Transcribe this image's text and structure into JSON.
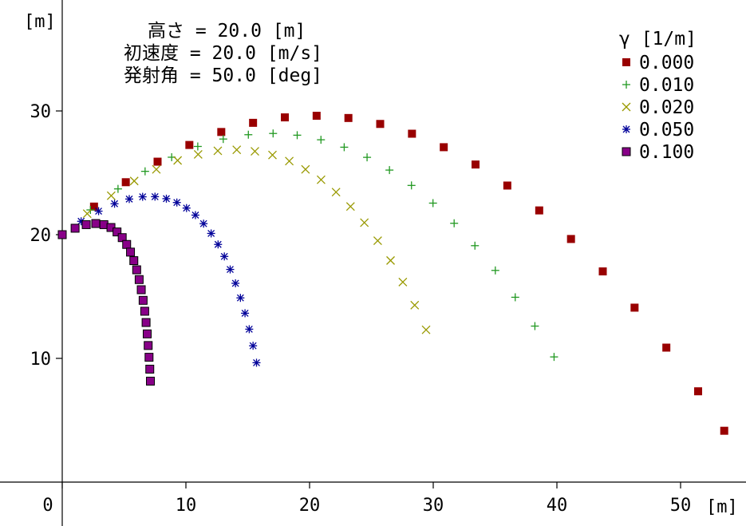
{
  "chart_data": {
    "type": "scatter",
    "annotations": [
      "高さ = 20.0 [m]",
      "初速度 = 20.0 [m/s]",
      "発射角 = 50.0 [deg]"
    ],
    "xlabel": "[m]",
    "ylabel": "[m]",
    "xlim": [
      0,
      55
    ],
    "ylim": [
      0,
      39
    ],
    "xticks": [
      "0",
      "10",
      "20",
      "30",
      "40",
      "50"
    ],
    "yticks": [
      "10",
      "20",
      "30"
    ],
    "grid": false,
    "legend_title": "γ [1/m]",
    "legend_position": "top-right",
    "series": [
      {
        "name": "0.000",
        "color": "#990000",
        "marker": "square",
        "x": [
          0,
          2.57,
          5.14,
          7.71,
          10.28,
          12.86,
          15.43,
          18.0,
          20.57,
          23.14,
          25.71,
          28.28,
          30.85,
          33.42,
          35.99,
          38.57,
          41.14,
          43.71,
          46.28,
          48.85,
          51.42,
          53.53
        ],
        "y": [
          20.0,
          22.27,
          24.24,
          25.9,
          27.25,
          28.3,
          29.04,
          29.48,
          29.61,
          29.43,
          28.95,
          28.16,
          27.07,
          25.67,
          23.97,
          21.96,
          19.65,
          17.03,
          14.1,
          10.87,
          7.34,
          4.15
        ]
      },
      {
        "name": "0.010",
        "color": "#229922",
        "marker": "plus",
        "x": [
          0,
          2.28,
          4.51,
          6.7,
          8.85,
          10.96,
          13.02,
          15.05,
          17.05,
          19.0,
          20.92,
          22.8,
          24.65,
          26.46,
          28.24,
          29.98,
          31.69,
          33.37,
          35.02,
          36.63,
          38.22,
          39.77
        ],
        "y": [
          20.0,
          22.0,
          23.7,
          25.12,
          26.26,
          27.13,
          27.73,
          28.08,
          28.18,
          28.04,
          27.67,
          27.07,
          26.25,
          25.22,
          23.98,
          22.55,
          20.92,
          19.11,
          17.11,
          14.94,
          12.61,
          10.12
        ]
      },
      {
        "name": "0.020",
        "color": "#999900",
        "marker": "x",
        "x": [
          0,
          2.02,
          3.96,
          5.82,
          7.61,
          9.33,
          10.99,
          12.58,
          14.11,
          15.58,
          17.0,
          18.36,
          19.67,
          20.93,
          22.14,
          23.31,
          24.43,
          25.51,
          26.55,
          27.54,
          28.5,
          29.42
        ],
        "y": [
          20.0,
          21.7,
          23.15,
          24.34,
          25.28,
          26.0,
          26.49,
          26.78,
          26.86,
          26.74,
          26.44,
          25.95,
          25.28,
          24.44,
          23.44,
          22.28,
          20.97,
          19.51,
          17.91,
          16.17,
          14.3,
          12.31
        ]
      },
      {
        "name": "0.050",
        "color": "#000099",
        "marker": "star",
        "x": [
          0,
          1.53,
          2.94,
          4.23,
          5.42,
          6.5,
          7.5,
          8.42,
          9.27,
          10.05,
          10.77,
          11.43,
          12.04,
          12.6,
          13.11,
          13.58,
          14.01,
          14.41,
          14.78,
          15.12,
          15.43,
          15.71
        ],
        "y": [
          20.0,
          21.08,
          21.9,
          22.5,
          22.88,
          23.06,
          23.07,
          22.91,
          22.6,
          22.15,
          21.58,
          20.89,
          20.1,
          19.21,
          18.24,
          17.19,
          16.07,
          14.89,
          13.65,
          12.36,
          11.02,
          9.65
        ]
      },
      {
        "name": "0.100",
        "color": "#880088",
        "marker": "square-filled",
        "x": [
          0,
          1.04,
          1.94,
          2.71,
          3.37,
          3.94,
          4.43,
          4.85,
          5.21,
          5.52,
          5.79,
          6.02,
          6.22,
          6.39,
          6.54,
          6.67,
          6.78,
          6.87,
          6.95,
          7.02,
          7.08,
          7.13
        ],
        "y": [
          20.0,
          20.52,
          20.81,
          20.9,
          20.81,
          20.58,
          20.22,
          19.76,
          19.21,
          18.59,
          17.9,
          17.16,
          16.37,
          15.55,
          14.69,
          13.81,
          12.9,
          11.98,
          11.04,
          10.09,
          9.13,
          8.16
        ]
      }
    ]
  }
}
